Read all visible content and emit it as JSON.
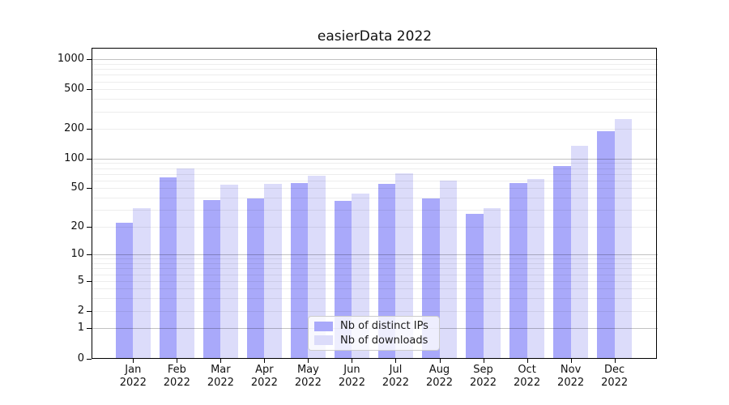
{
  "title": "easierData 2022",
  "chart_data": {
    "type": "bar",
    "title": "easierData 2022",
    "categories": [
      "Jan",
      "Feb",
      "Mar",
      "Apr",
      "May",
      "Jun",
      "Jul",
      "Aug",
      "Sep",
      "Oct",
      "Nov",
      "Dec"
    ],
    "year": "2022",
    "series": [
      {
        "name": "Nb of distinct IPs",
        "color": "#a9a9fa",
        "values": [
          22,
          64,
          38,
          39,
          57,
          37,
          55,
          39,
          27,
          56,
          84,
          190
        ]
      },
      {
        "name": "Nb of downloads",
        "color": "#dcdcfa",
        "values": [
          31,
          80,
          54,
          55,
          67,
          44,
          71,
          60,
          31,
          62,
          135,
          250
        ]
      }
    ],
    "xlabel": "",
    "ylabel": "",
    "yscale": "log1p",
    "yticks": [
      0,
      1,
      2,
      5,
      10,
      20,
      50,
      100,
      200,
      500,
      1000
    ],
    "ylim": [
      0,
      1295
    ],
    "grid": true,
    "legend_position": "lower center"
  },
  "colors": {
    "background": "#ffffff",
    "major_grid": "#bdbdbd",
    "minor_grid": "#ececec",
    "axis": "#000000"
  }
}
